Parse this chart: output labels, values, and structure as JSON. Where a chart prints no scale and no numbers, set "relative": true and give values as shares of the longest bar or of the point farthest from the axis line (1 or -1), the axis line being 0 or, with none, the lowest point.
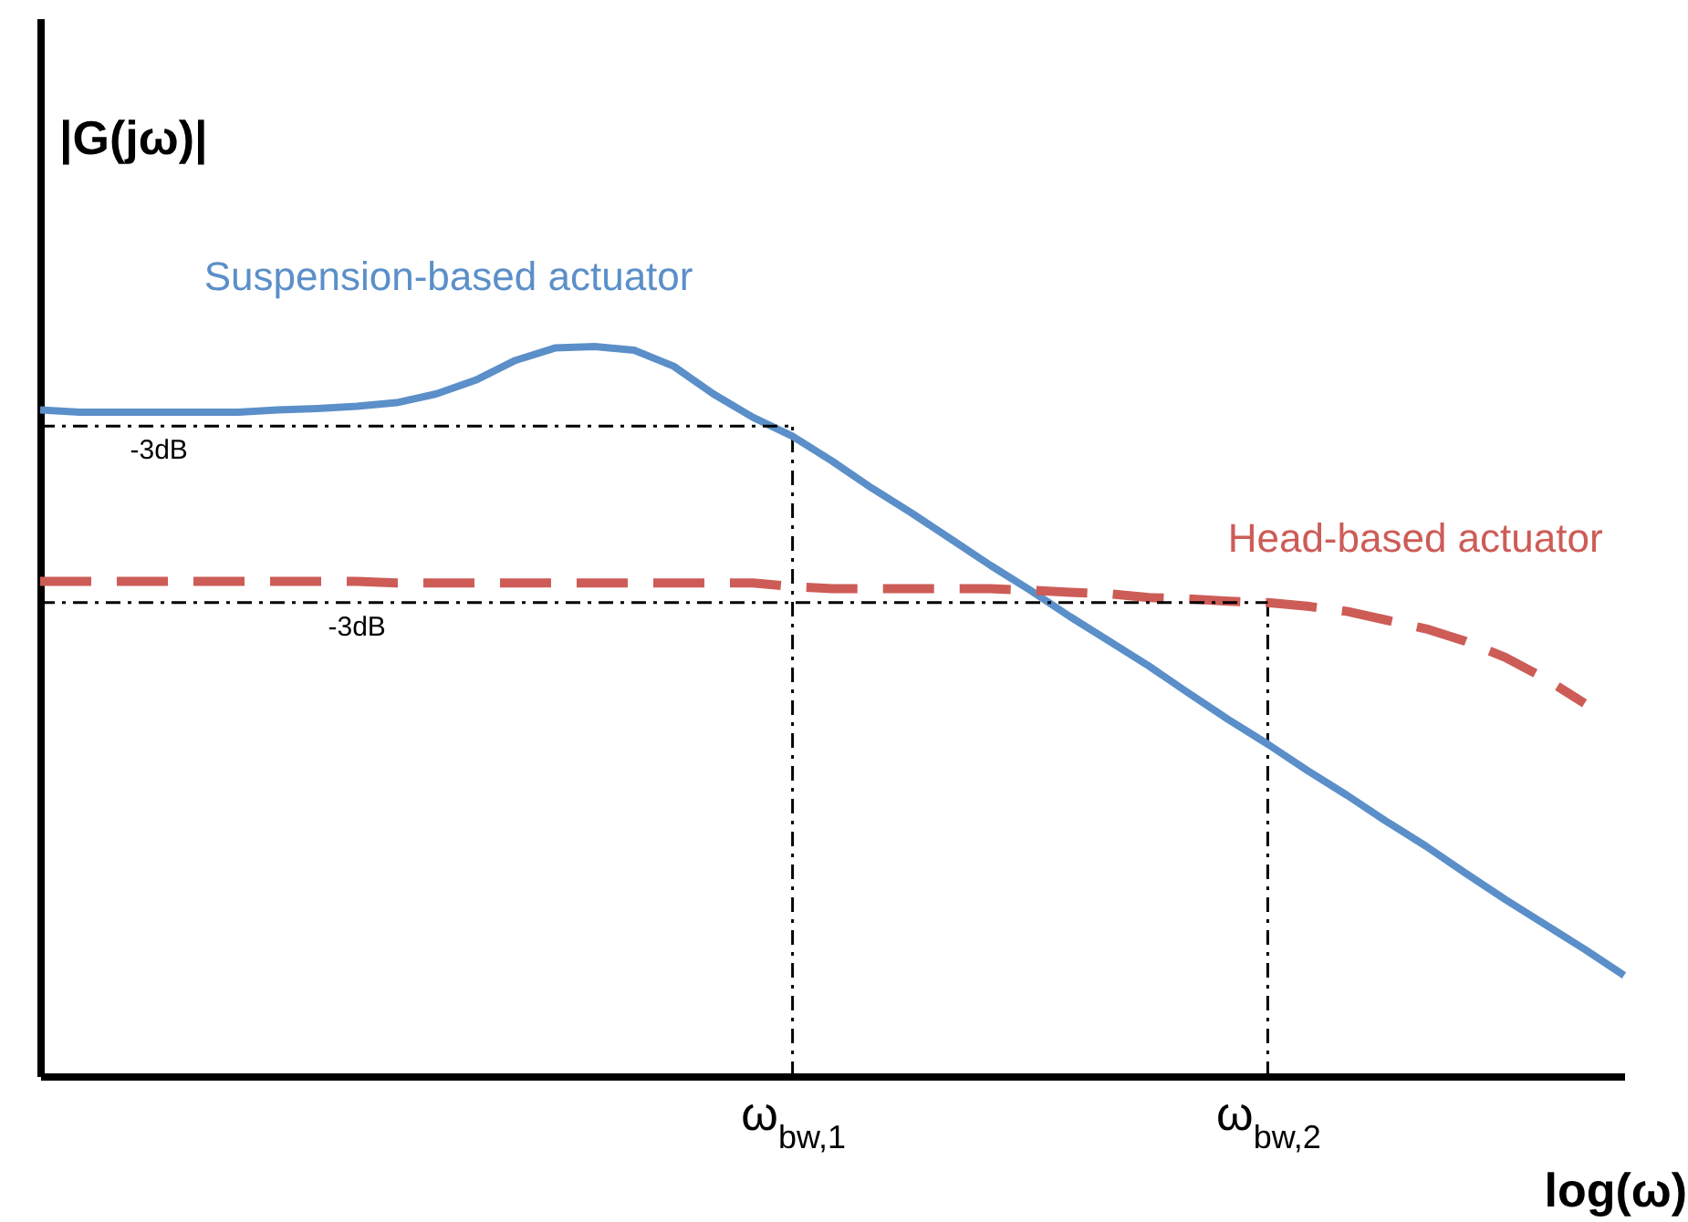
{
  "chart_data": {
    "type": "line",
    "relative": true,
    "xlabel": "log(ω)",
    "ylabel": "|G(jω)|",
    "categories": [
      null,
      null,
      null,
      null,
      null,
      null,
      null,
      null,
      null,
      null,
      null,
      null,
      null,
      null,
      null,
      null,
      null,
      null,
      null,
      "ω$_{bw,1}$",
      null,
      null,
      null,
      null,
      null,
      null,
      null,
      null,
      null,
      null,
      null,
      "ω$_{bw,2}$",
      null,
      null,
      null,
      null,
      null,
      null,
      null,
      null,
      null
    ],
    "tick_labels": "x",
    "grid": false,
    "legend": false,
    "marker": "none",
    "series": [
      {
        "name": "Suspension-based actuator",
        "color": "#5b8fc9",
        "line_style": "solid",
        "values": [
          0.913,
          0.91,
          0.91,
          0.91,
          0.91,
          0.91,
          0.913,
          0.915,
          0.918,
          0.923,
          0.935,
          0.954,
          0.981,
          0.998,
          1.0,
          0.995,
          0.973,
          0.935,
          0.903,
          0.877,
          0.843,
          0.806,
          0.772,
          0.736,
          0.7,
          0.666,
          0.63,
          0.596,
          0.562,
          0.525,
          0.489,
          0.455,
          0.419,
          0.385,
          0.349,
          0.315,
          0.278,
          0.242,
          0.208,
          0.174,
          0.138
        ]
      },
      {
        "name": "Head-based actuator",
        "color": "#cd5c57",
        "line_style": "dashed",
        "values": [
          0.678,
          0.678,
          0.678,
          0.678,
          0.678,
          0.678,
          0.678,
          0.678,
          0.678,
          0.676,
          0.676,
          0.676,
          0.676,
          0.676,
          0.676,
          0.676,
          0.676,
          0.676,
          0.676,
          0.671,
          0.668,
          0.668,
          0.668,
          0.668,
          0.668,
          0.666,
          0.663,
          0.661,
          0.656,
          0.654,
          0.651,
          0.649,
          0.644,
          0.637,
          0.625,
          0.613,
          0.596,
          0.574,
          0.545,
          0.511,
          null
        ]
      },
      {
        "color": "#000000",
        "line_style": "dotted",
        "values": [
          0.891,
          0.891,
          0.891,
          0.891,
          0.891,
          0.891,
          0.891,
          0.891,
          0.891,
          0.891,
          0.891,
          0.891,
          0.891,
          0.891,
          0.891,
          0.891,
          0.891,
          0.891,
          0.891,
          0.891,
          null,
          null,
          null,
          null,
          null,
          null,
          null,
          null,
          null,
          null,
          null,
          null,
          null,
          null,
          null,
          null,
          null,
          null,
          null,
          null,
          null
        ]
      },
      {
        "color": "#000000",
        "line_style": "dotted",
        "values": [
          0.649,
          0.649,
          0.649,
          0.649,
          0.649,
          0.649,
          0.649,
          0.649,
          0.649,
          0.649,
          0.649,
          0.649,
          0.649,
          0.649,
          0.649,
          0.649,
          0.649,
          0.649,
          0.649,
          0.649,
          0.649,
          0.649,
          0.649,
          0.649,
          0.649,
          0.649,
          0.649,
          0.649,
          0.649,
          0.649,
          0.649,
          0.649,
          null,
          null,
          null,
          null,
          null,
          null,
          null,
          null,
          null
        ]
      }
    ],
    "ref_lines": [
      {
        "axis": "x",
        "value": "ω$_{bw,1}$",
        "color": "#000000",
        "line_style": "dotted"
      },
      {
        "axis": "x",
        "value": "ω$_{bw,2}$",
        "color": "#000000",
        "line_style": "dotted"
      }
    ],
    "annotations": [
      {
        "text": "-3dB",
        "y": 0.891
      },
      {
        "text": "-3dB",
        "y": 0.649
      }
    ]
  }
}
